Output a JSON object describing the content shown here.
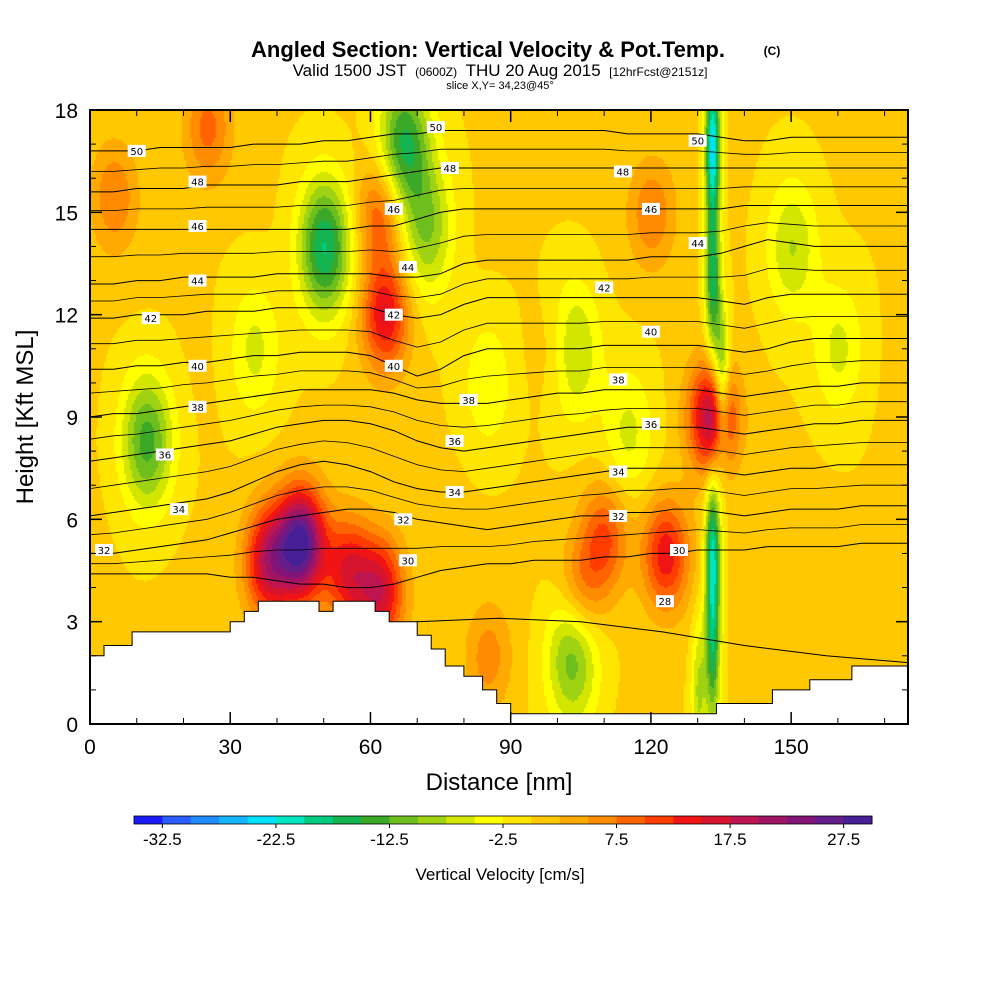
{
  "header": {
    "title_main": "Angled Section: Vertical Velocity & Pot.Temp.",
    "title_mark": "(C)",
    "valid_prefix": "Valid 1500 JST",
    "valid_z": "(0600Z)",
    "valid_date": "THU 20 Aug 2015",
    "valid_fcst": "[12hrFcst@2151z]",
    "slice": "slice X,Y= 34,23@45°"
  },
  "chart_data": {
    "type": "heatmap",
    "title": "Angled Section: Vertical Velocity & Pot.Temp.",
    "xlabel": "Distance [nm]",
    "ylabel": "Height [Kft MSL]",
    "xlim": [
      0,
      175
    ],
    "ylim": [
      0,
      18
    ],
    "x_ticks": [
      0,
      30,
      60,
      90,
      120,
      150
    ],
    "y_ticks": [
      0,
      3,
      6,
      9,
      12,
      15,
      18
    ],
    "colorbar": {
      "label": "Vertical Velocity [cm/s]",
      "min": -35,
      "max": 30,
      "step": 2.5,
      "tick_labels": [
        "-32.5",
        "-22.5",
        "-12.5",
        "-2.5",
        "7.5",
        "17.5",
        "27.5"
      ],
      "colors": [
        "#1a1aff",
        "#2a5cff",
        "#1f8cff",
        "#14b4ff",
        "#00e0ff",
        "#00e6c0",
        "#00cc80",
        "#14b450",
        "#3ca828",
        "#6ebe1e",
        "#a0d214",
        "#d2e600",
        "#ffff00",
        "#ffe600",
        "#ffc800",
        "#ffaa00",
        "#ff8c00",
        "#ff6400",
        "#ff3c00",
        "#f01414",
        "#d7142d",
        "#be1450",
        "#a01464",
        "#821478",
        "#641e8c",
        "#461e96"
      ]
    },
    "updrafts": [
      {
        "x": 45,
        "y": 5.3,
        "value": 28
      },
      {
        "x": 38,
        "y": 4.8,
        "value": 18
      },
      {
        "x": 55,
        "y": 4.5,
        "value": 14
      },
      {
        "x": 62,
        "y": 3.9,
        "value": 16
      },
      {
        "x": 63,
        "y": 12.0,
        "value": 15
      },
      {
        "x": 62,
        "y": 15.0,
        "value": 10
      },
      {
        "x": 133,
        "y": 9.0,
        "value": 20
      },
      {
        "x": 123,
        "y": 5.0,
        "value": 14
      },
      {
        "x": 110,
        "y": 5.5,
        "value": 10
      },
      {
        "x": 105,
        "y": 4.0,
        "value": 8
      },
      {
        "x": 85,
        "y": 2.0,
        "value": 6
      },
      {
        "x": 25,
        "y": 17.5,
        "value": 8
      },
      {
        "x": 5,
        "y": 15.5,
        "value": 7
      },
      {
        "x": 120,
        "y": 15.0,
        "value": 7
      },
      {
        "x": 100,
        "y": 11.0,
        "value": 4
      }
    ],
    "downdrafts": [
      {
        "x": 133,
        "y": 17.0,
        "value": -24
      },
      {
        "x": 133,
        "y": 13.0,
        "value": -16
      },
      {
        "x": 133,
        "y": 5.0,
        "value": -20
      },
      {
        "x": 133,
        "y": 2.0,
        "value": -14
      },
      {
        "x": 135,
        "y": 10.0,
        "value": -14
      },
      {
        "x": 50,
        "y": 14.0,
        "value": -18
      },
      {
        "x": 67,
        "y": 17.0,
        "value": -16
      },
      {
        "x": 72,
        "y": 14.5,
        "value": -10
      },
      {
        "x": 12,
        "y": 8.3,
        "value": -14
      },
      {
        "x": 103,
        "y": 2.0,
        "value": -12
      },
      {
        "x": 103,
        "y": 11.0,
        "value": -10
      },
      {
        "x": 150,
        "y": 14.0,
        "value": -8
      },
      {
        "x": 35,
        "y": 11.0,
        "value": -6
      },
      {
        "x": 160,
        "y": 11.0,
        "value": -6
      },
      {
        "x": 85,
        "y": 10.0,
        "value": -5
      },
      {
        "x": 130,
        "y": 1.0,
        "value": -8
      },
      {
        "x": 115,
        "y": 8.5,
        "value": -6
      }
    ],
    "isentropes": [
      {
        "theta": 28,
        "heights": [
          1.0,
          1.7,
          2.2,
          2.8,
          3.0,
          3.1,
          3.0,
          2.7,
          2.3,
          2.0,
          1.8
        ]
      },
      {
        "theta": 30,
        "heights": [
          4.4,
          4.4,
          4.4,
          4.4,
          4.4,
          4.4,
          4.3,
          4.3,
          4.2,
          4.1,
          4.1,
          4.0,
          4.0,
          4.1,
          4.3,
          4.5,
          4.6,
          4.7,
          4.7,
          4.8,
          4.8,
          4.8,
          4.9,
          4.9,
          5.0,
          5.0,
          5.1,
          5.1,
          5.1,
          5.2,
          5.2,
          5.2,
          5.2,
          5.3,
          5.3,
          5.3
        ]
      },
      {
        "theta": 32,
        "heights": [
          5.0,
          5.0,
          5.1,
          5.2,
          5.3,
          5.4,
          5.6,
          5.8,
          6.0,
          6.1,
          6.2,
          6.3,
          6.3,
          6.2,
          6.0,
          5.9,
          5.8,
          5.7,
          5.8,
          5.9,
          6.0,
          6.1,
          6.1,
          6.2,
          6.2,
          6.3,
          6.3,
          6.2,
          6.1,
          6.2,
          6.3,
          6.3,
          6.3,
          6.4,
          6.4,
          6.4
        ]
      },
      {
        "theta": 34,
        "heights": [
          6.1,
          6.2,
          6.3,
          6.4,
          6.5,
          6.6,
          6.8,
          7.1,
          7.4,
          7.6,
          7.7,
          7.6,
          7.4,
          7.1,
          6.9,
          6.8,
          6.8,
          6.9,
          7.0,
          7.1,
          7.2,
          7.3,
          7.4,
          7.5,
          7.5,
          7.5,
          7.5,
          7.4,
          7.3,
          7.4,
          7.5,
          7.5,
          7.6,
          7.6,
          7.6,
          7.6
        ]
      },
      {
        "theta": 36,
        "heights": [
          7.7,
          7.8,
          7.9,
          8.0,
          8.1,
          8.2,
          8.3,
          8.5,
          8.7,
          8.8,
          8.9,
          8.9,
          8.8,
          8.6,
          8.3,
          8.1,
          8.0,
          8.1,
          8.2,
          8.3,
          8.4,
          8.5,
          8.6,
          8.7,
          8.7,
          8.7,
          8.7,
          8.6,
          8.5,
          8.6,
          8.7,
          8.8,
          8.8,
          8.9,
          8.9,
          8.9
        ]
      },
      {
        "theta": 38,
        "heights": [
          9.0,
          9.1,
          9.1,
          9.2,
          9.3,
          9.4,
          9.5,
          9.6,
          9.7,
          9.8,
          9.8,
          9.8,
          9.8,
          9.7,
          9.5,
          9.4,
          9.4,
          9.4,
          9.5,
          9.6,
          9.7,
          9.7,
          9.8,
          9.8,
          9.8,
          9.8,
          9.8,
          9.7,
          9.6,
          9.7,
          9.8,
          9.9,
          9.9,
          10.0,
          10.0,
          10.0
        ]
      },
      {
        "theta": 40,
        "heights": [
          10.4,
          10.4,
          10.5,
          10.5,
          10.6,
          10.6,
          10.7,
          10.8,
          10.8,
          10.9,
          10.9,
          10.9,
          10.8,
          10.5,
          10.2,
          10.4,
          10.8,
          11.0,
          11.0,
          11.0,
          11.0,
          11.0,
          11.1,
          11.1,
          11.1,
          11.1,
          11.1,
          11.0,
          10.9,
          11.0,
          11.2,
          11.3,
          11.3,
          11.3,
          11.3,
          11.3
        ]
      },
      {
        "theta": 42,
        "heights": [
          11.9,
          11.9,
          12.0,
          12.0,
          12.0,
          12.1,
          12.1,
          12.1,
          12.2,
          12.2,
          12.2,
          12.2,
          12.2,
          12.0,
          11.9,
          12.0,
          12.3,
          12.5,
          12.5,
          12.5,
          12.5,
          12.5,
          12.5,
          12.5,
          12.5,
          12.5,
          12.5,
          12.4,
          12.3,
          12.5,
          12.6,
          12.6,
          12.6,
          12.6,
          12.6,
          12.6
        ]
      },
      {
        "theta": 44,
        "heights": [
          12.9,
          12.9,
          13.0,
          13.0,
          13.1,
          13.1,
          13.1,
          13.1,
          13.2,
          13.2,
          13.2,
          13.2,
          13.2,
          13.1,
          13.1,
          13.2,
          13.5,
          13.6,
          13.6,
          13.6,
          13.6,
          13.6,
          13.6,
          13.6,
          13.7,
          13.7,
          13.7,
          13.8,
          14.0,
          14.2,
          14.1,
          14.0,
          14.0,
          14.0,
          14.0,
          14.0
        ]
      },
      {
        "theta": 46,
        "heights": [
          14.5,
          14.5,
          14.5,
          14.5,
          14.5,
          14.5,
          14.5,
          14.5,
          14.5,
          14.5,
          14.5,
          14.5,
          14.6,
          14.6,
          14.8,
          15.0,
          15.1,
          15.1,
          15.1,
          15.1,
          15.1,
          15.1,
          15.1,
          15.1,
          15.1,
          15.1,
          15.1,
          15.1,
          15.2,
          15.2,
          15.2,
          15.2,
          15.2,
          15.2,
          15.2,
          15.2
        ]
      },
      {
        "theta": 48,
        "heights": [
          15.6,
          15.6,
          15.7,
          15.7,
          15.7,
          15.8,
          15.8,
          15.8,
          15.8,
          15.9,
          15.9,
          15.9,
          16.0,
          16.1,
          16.2,
          16.3,
          16.3,
          16.3,
          16.3,
          16.3,
          16.3,
          16.3,
          16.3,
          16.3,
          16.3,
          16.3,
          16.3,
          16.3,
          16.3,
          16.3,
          16.3,
          16.3,
          16.3,
          16.3,
          16.3,
          16.3
        ]
      },
      {
        "theta": 50,
        "heights": [
          16.8,
          16.8,
          16.8,
          16.9,
          16.9,
          16.9,
          16.9,
          17.0,
          17.0,
          17.0,
          17.1,
          17.1,
          17.2,
          17.3,
          17.3,
          17.4,
          17.4,
          17.4,
          17.4,
          17.4,
          17.4,
          17.4,
          17.4,
          17.3,
          17.3,
          17.3,
          17.3,
          17.2,
          17.1,
          17.1,
          17.2,
          17.2,
          17.2,
          17.2,
          17.2,
          17.2
        ]
      }
    ],
    "contour_labels": [
      {
        "text": "50",
        "x": 10,
        "y": 16.8
      },
      {
        "text": "50",
        "x": 74,
        "y": 17.5
      },
      {
        "text": "50",
        "x": 130,
        "y": 17.1
      },
      {
        "text": "48",
        "x": 23,
        "y": 15.9
      },
      {
        "text": "48",
        "x": 77,
        "y": 16.3
      },
      {
        "text": "48",
        "x": 114,
        "y": 16.2
      },
      {
        "text": "46",
        "x": 23,
        "y": 14.6
      },
      {
        "text": "46",
        "x": 65,
        "y": 15.1
      },
      {
        "text": "46",
        "x": 120,
        "y": 15.1
      },
      {
        "text": "44",
        "x": 23,
        "y": 13.0
      },
      {
        "text": "44",
        "x": 68,
        "y": 13.4
      },
      {
        "text": "44",
        "x": 130,
        "y": 14.1
      },
      {
        "text": "42",
        "x": 13,
        "y": 11.9
      },
      {
        "text": "42",
        "x": 65,
        "y": 12.0
      },
      {
        "text": "42",
        "x": 110,
        "y": 12.8
      },
      {
        "text": "40",
        "x": 23,
        "y": 10.5
      },
      {
        "text": "40",
        "x": 65,
        "y": 10.5
      },
      {
        "text": "40",
        "x": 120,
        "y": 11.5
      },
      {
        "text": "38",
        "x": 23,
        "y": 9.3
      },
      {
        "text": "38",
        "x": 81,
        "y": 9.5
      },
      {
        "text": "38",
        "x": 113,
        "y": 10.1
      },
      {
        "text": "36",
        "x": 16,
        "y": 7.9
      },
      {
        "text": "36",
        "x": 78,
        "y": 8.3
      },
      {
        "text": "36",
        "x": 120,
        "y": 8.8
      },
      {
        "text": "34",
        "x": 19,
        "y": 6.3
      },
      {
        "text": "34",
        "x": 78,
        "y": 6.8
      },
      {
        "text": "34",
        "x": 113,
        "y": 7.4
      },
      {
        "text": "32",
        "x": 3,
        "y": 5.1
      },
      {
        "text": "32",
        "x": 67,
        "y": 6.0
      },
      {
        "text": "32",
        "x": 113,
        "y": 6.1
      },
      {
        "text": "30",
        "x": 68,
        "y": 4.8
      },
      {
        "text": "30",
        "x": 126,
        "y": 5.1
      },
      {
        "text": "28",
        "x": 123,
        "y": 3.6
      }
    ],
    "terrain": [
      [
        0,
        2.0
      ],
      [
        3,
        2.0
      ],
      [
        3,
        2.3
      ],
      [
        9,
        2.3
      ],
      [
        9,
        2.7
      ],
      [
        17,
        2.7
      ],
      [
        17,
        2.7
      ],
      [
        30,
        2.7
      ],
      [
        30,
        3.0
      ],
      [
        33,
        3.0
      ],
      [
        33,
        3.3
      ],
      [
        36,
        3.3
      ],
      [
        36,
        3.6
      ],
      [
        49,
        3.6
      ],
      [
        49,
        3.3
      ],
      [
        52,
        3.3
      ],
      [
        52,
        3.6
      ],
      [
        61,
        3.6
      ],
      [
        61,
        3.3
      ],
      [
        64,
        3.3
      ],
      [
        64,
        3.0
      ],
      [
        70,
        3.0
      ],
      [
        70,
        2.6
      ],
      [
        73,
        2.6
      ],
      [
        73,
        2.2
      ],
      [
        76,
        2.2
      ],
      [
        76,
        1.7
      ],
      [
        80,
        1.7
      ],
      [
        80,
        1.4
      ],
      [
        84,
        1.4
      ],
      [
        84,
        1.0
      ],
      [
        87,
        1.0
      ],
      [
        87,
        0.6
      ],
      [
        90,
        0.6
      ],
      [
        90,
        0.3
      ],
      [
        130,
        0.3
      ],
      [
        130,
        0.3
      ],
      [
        134,
        0.3
      ],
      [
        134,
        0.6
      ],
      [
        146,
        0.6
      ],
      [
        146,
        1.0
      ],
      [
        154,
        1.0
      ],
      [
        154,
        1.3
      ],
      [
        163,
        1.3
      ],
      [
        163,
        1.7
      ],
      [
        175,
        1.7
      ]
    ]
  }
}
